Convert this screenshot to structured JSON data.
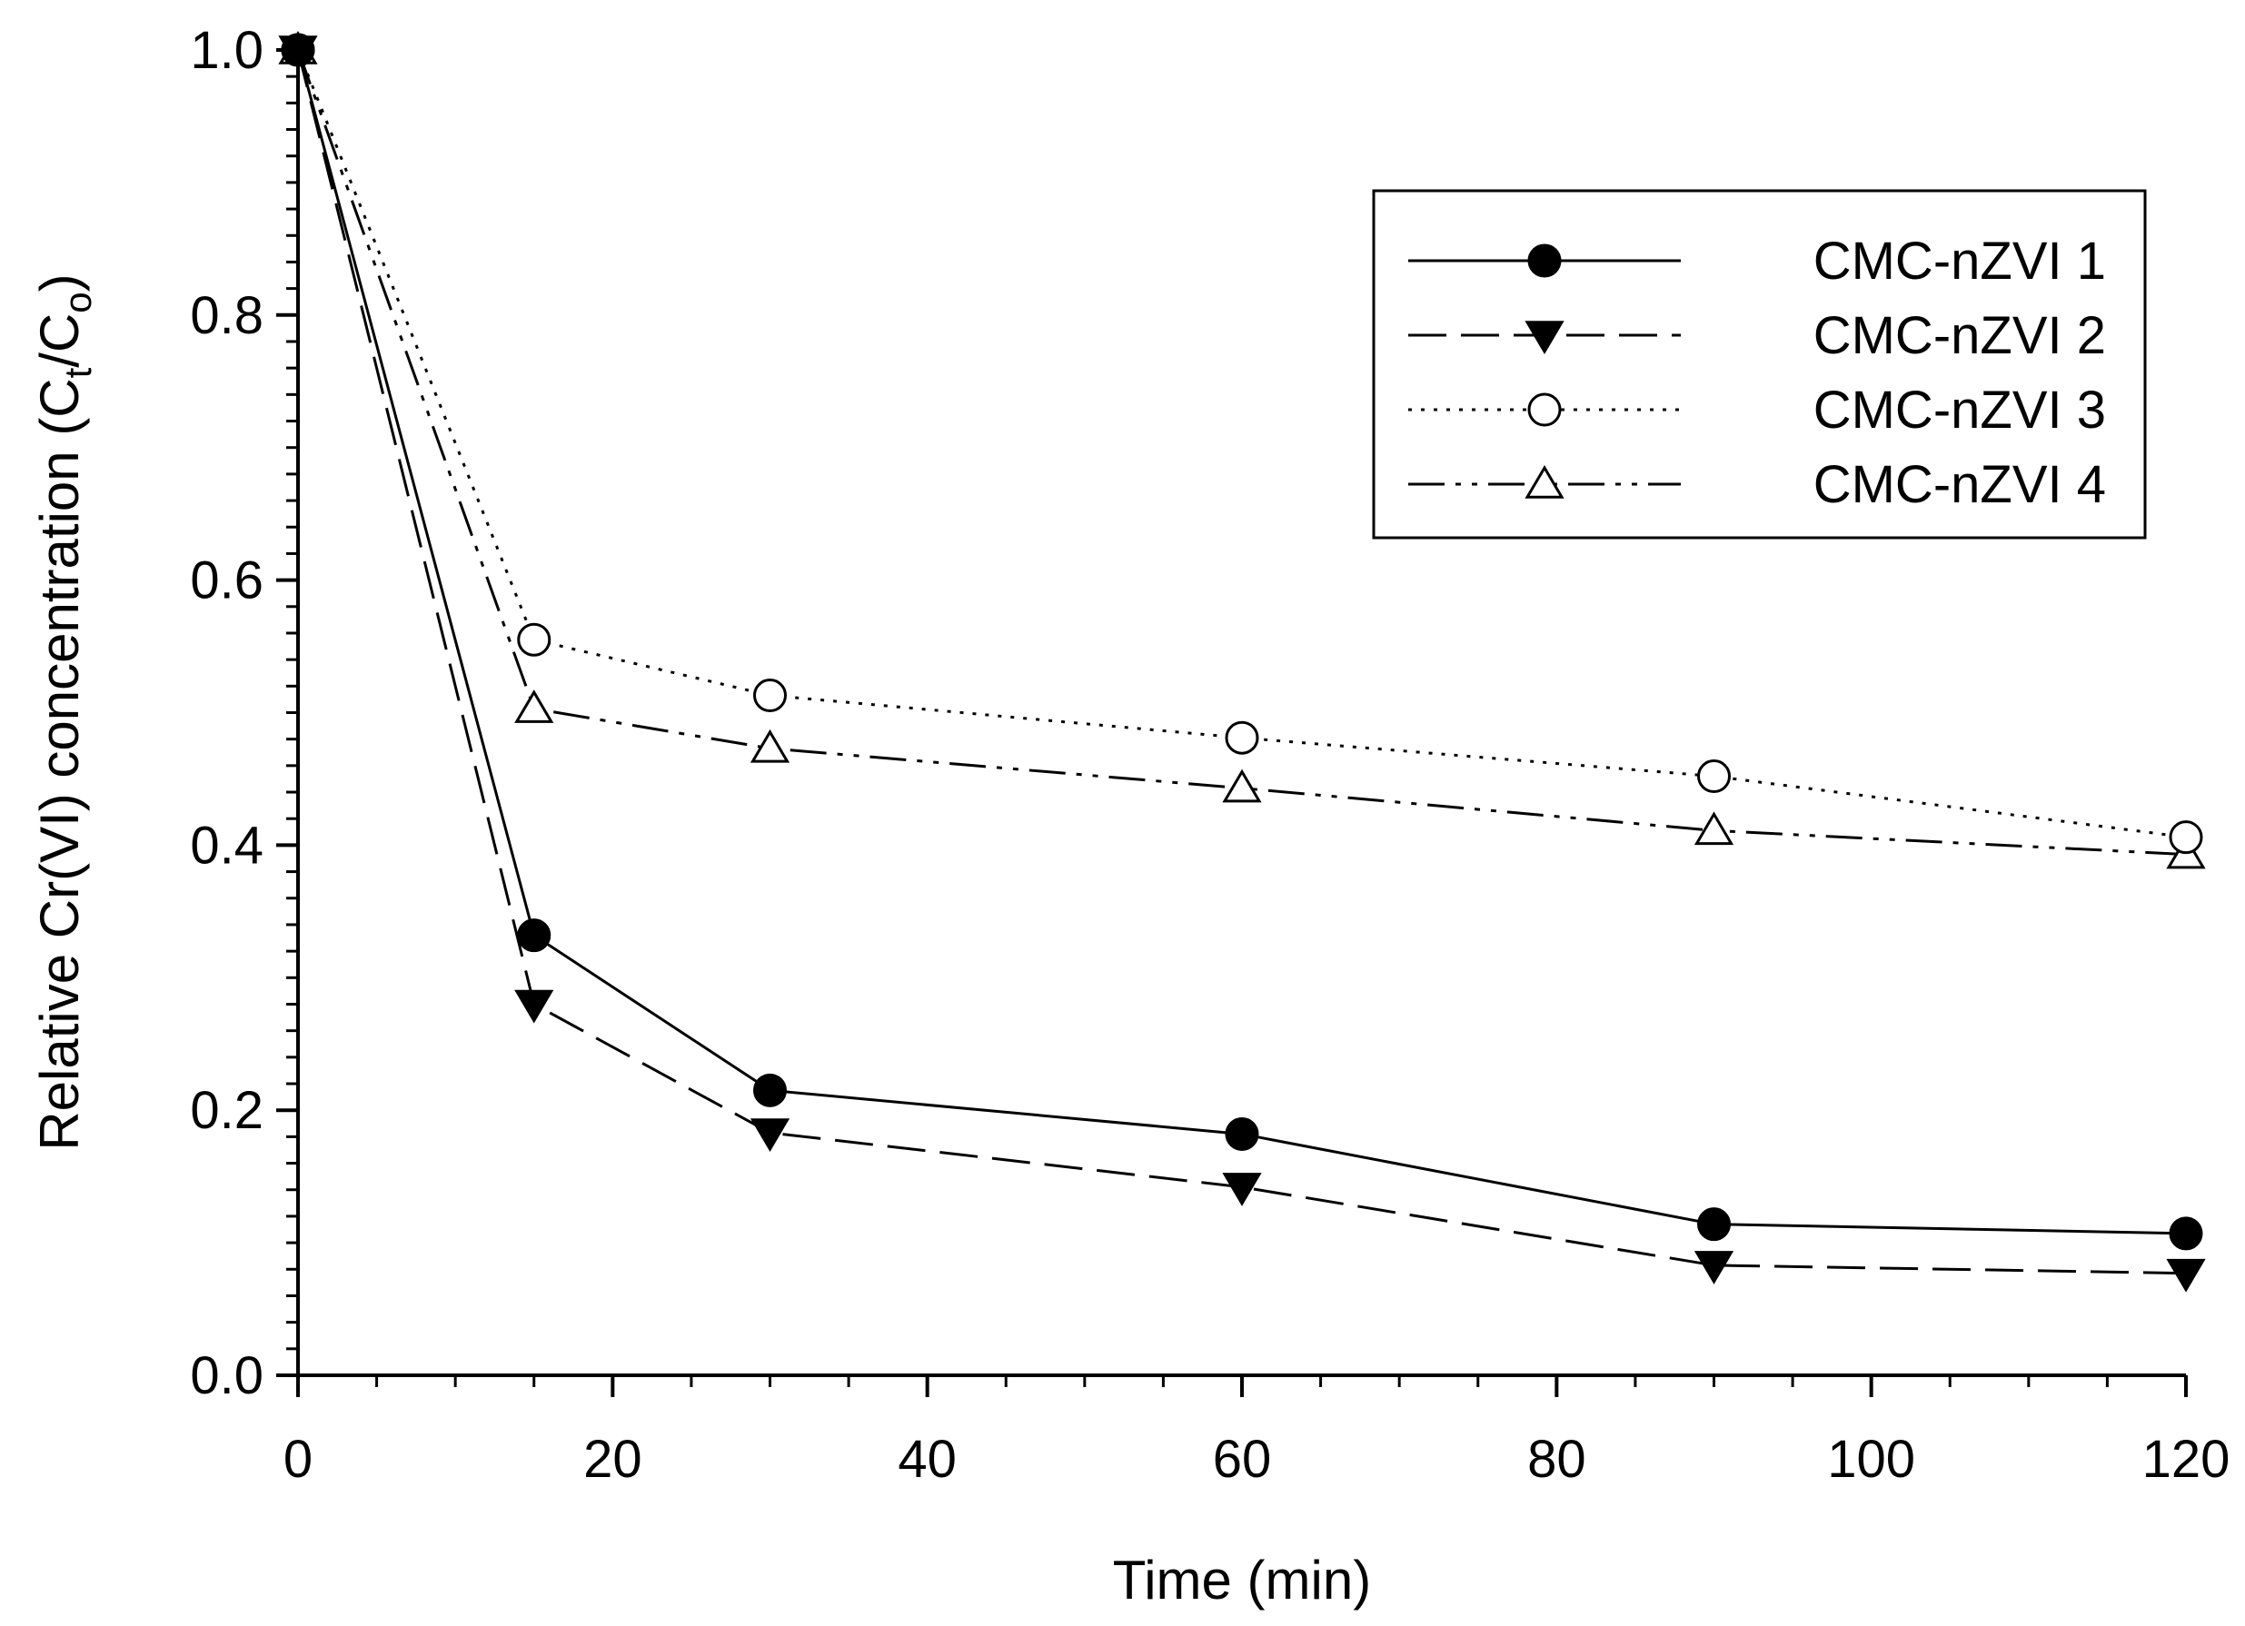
{
  "chart_data": {
    "type": "line",
    "title": "",
    "xlabel": "Time (min)",
    "ylabel": {
      "before": "Relative Cr(VI) concentration (C",
      "sub1": "t",
      "middle": "/C",
      "sub2": "o",
      "after": ")"
    },
    "xlim": [
      0,
      120
    ],
    "ylim": [
      0,
      1.0
    ],
    "xticks": [
      0,
      20,
      40,
      60,
      80,
      100,
      120
    ],
    "xtick_labels": [
      "0",
      "20",
      "40",
      "60",
      "80",
      "100",
      "120"
    ],
    "yticks": [
      0,
      0.2,
      0.4,
      0.6,
      0.8,
      1.0
    ],
    "ytick_labels": [
      "0.0",
      "0.2",
      "0.4",
      "0.6",
      "0.8",
      "1.0"
    ],
    "grid": false,
    "legend_position": "top-right",
    "x": [
      0,
      15,
      30,
      60,
      90,
      120
    ],
    "series": [
      {
        "name": "CMC-nZVI 1",
        "values": [
          1.0,
          0.332,
          0.215,
          0.182,
          0.114,
          0.107
        ],
        "marker": "circle-filled",
        "line": "solid"
      },
      {
        "name": "CMC-nZVI 2",
        "values": [
          1.0,
          0.28,
          0.183,
          0.142,
          0.083,
          0.077
        ],
        "marker": "triangle-down-filled",
        "line": "dashed"
      },
      {
        "name": "CMC-nZVI 3",
        "values": [
          1.0,
          0.555,
          0.513,
          0.481,
          0.452,
          0.406
        ],
        "marker": "circle-open",
        "line": "dotted"
      },
      {
        "name": "CMC-nZVI 4",
        "values": [
          1.0,
          0.503,
          0.473,
          0.443,
          0.411,
          0.393
        ],
        "marker": "triangle-up-open",
        "line": "dash-dot-dot"
      }
    ],
    "colors": {
      "ink": "#000000",
      "background": "#ffffff"
    }
  }
}
